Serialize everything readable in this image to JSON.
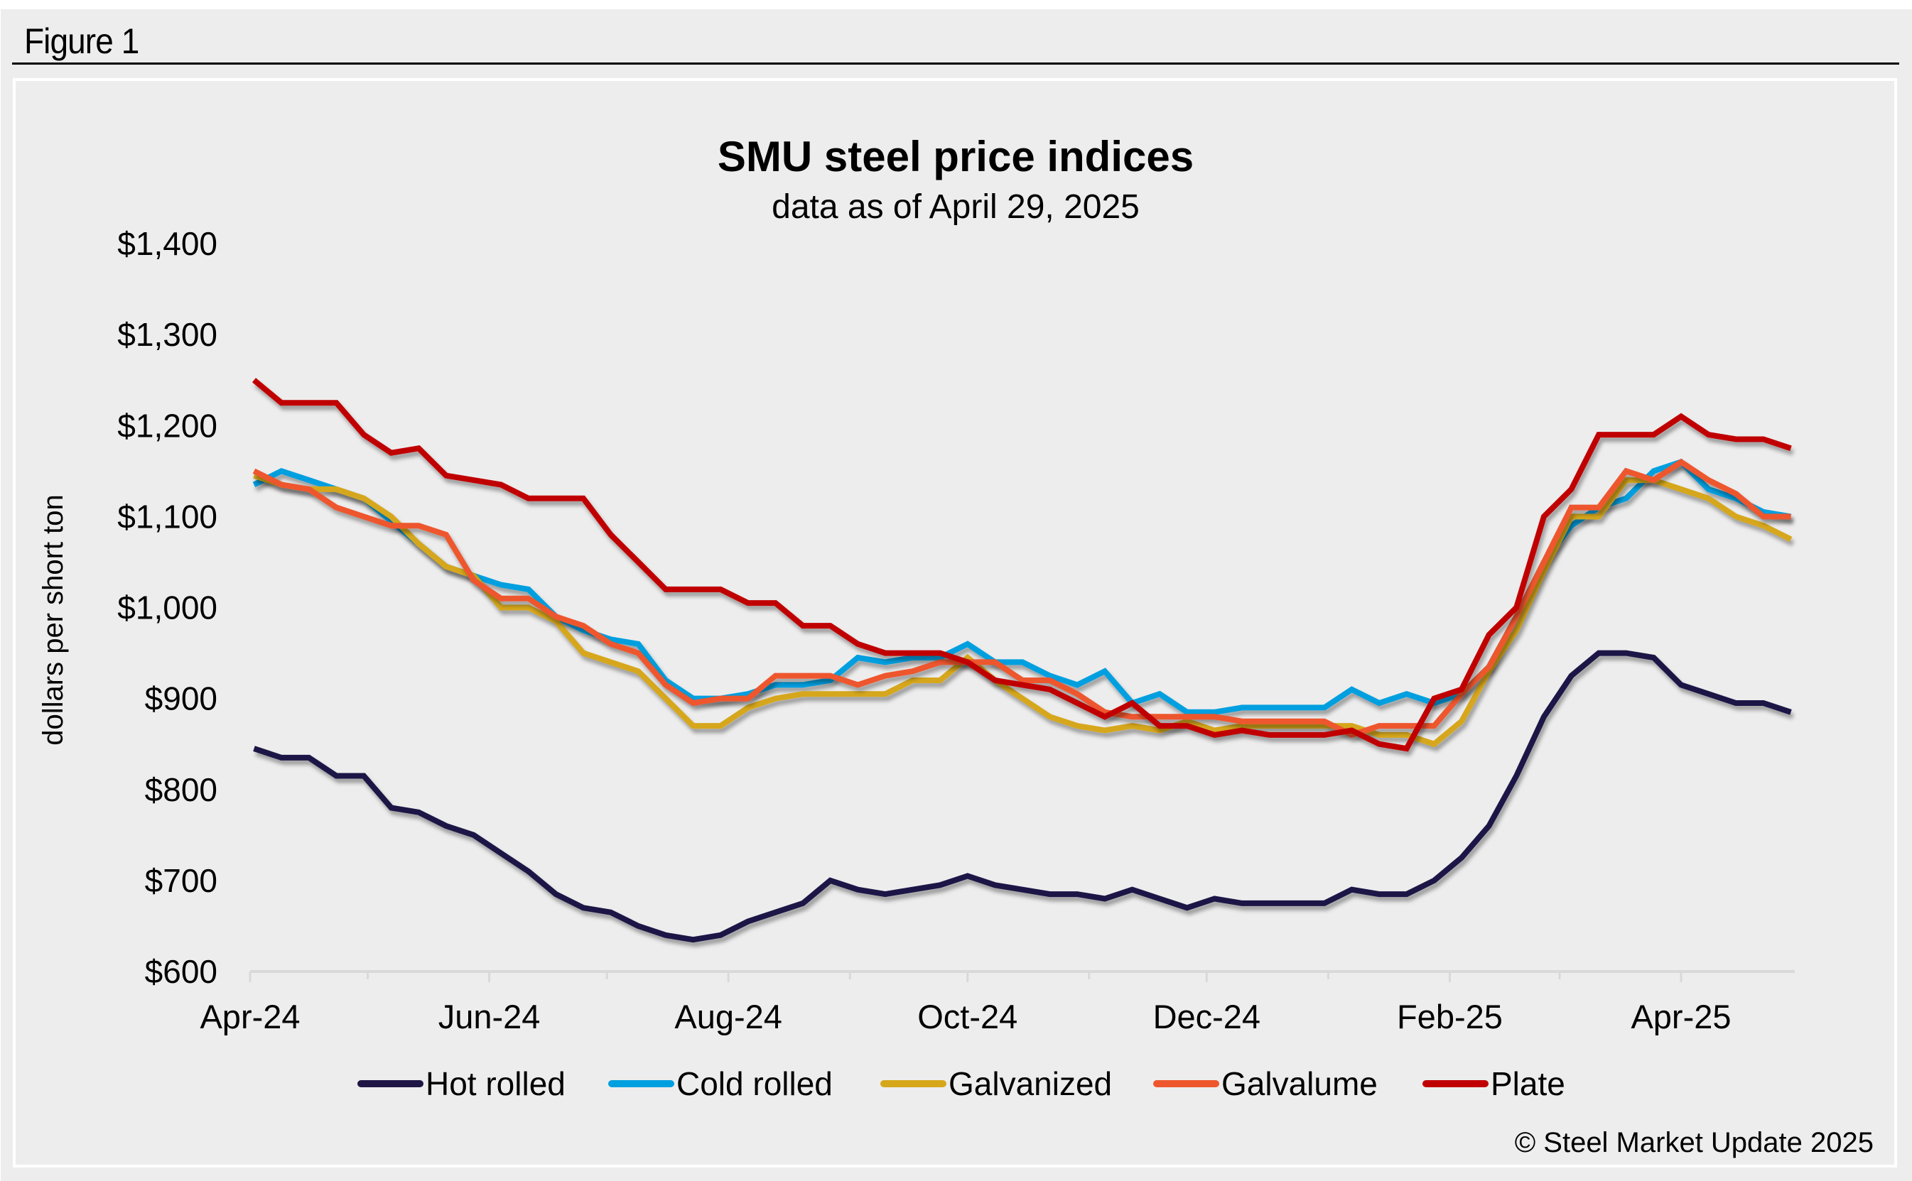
{
  "figure_label": "Figure 1",
  "chart_data": {
    "type": "line",
    "title": "SMU steel price indices",
    "subtitle": "data as of April 29, 2025",
    "xlabel": "",
    "ylabel": "dollars per short ton",
    "ylim": [
      600,
      1400
    ],
    "yticks": [
      600,
      700,
      800,
      900,
      1000,
      1100,
      1200,
      1300,
      1400
    ],
    "ytick_labels": [
      "$600",
      "$700",
      "$800",
      "$900",
      "$1,000",
      "$1,100",
      "$1,200",
      "$1,300",
      "$1,400"
    ],
    "xlim": [
      "2024-04-01",
      "2025-04-30"
    ],
    "x_start": "2024-04-02",
    "x_step_days": 7,
    "x_end": "2025-04-29",
    "xtick_minor": [
      "2024-04-01",
      "2024-05-01",
      "2024-06-01",
      "2024-07-01",
      "2024-08-01",
      "2024-09-01",
      "2024-10-01",
      "2024-11-01",
      "2024-12-01",
      "2025-01-01",
      "2025-02-01",
      "2025-03-01",
      "2025-04-01"
    ],
    "xticks": [
      {
        "date": "2024-04-01",
        "label": "Apr-24"
      },
      {
        "date": "2024-06-01",
        "label": "Jun-24"
      },
      {
        "date": "2024-08-01",
        "label": "Aug-24"
      },
      {
        "date": "2024-10-01",
        "label": "Oct-24"
      },
      {
        "date": "2024-12-01",
        "label": "Dec-24"
      },
      {
        "date": "2025-02-01",
        "label": "Feb-25"
      },
      {
        "date": "2025-04-01",
        "label": "Apr-25"
      }
    ],
    "grid": false,
    "legend_position": "bottom",
    "series": [
      {
        "name": "Hot rolled",
        "color": "#1F1646",
        "values": [
          845,
          835,
          835,
          815,
          815,
          780,
          775,
          760,
          750,
          730,
          710,
          685,
          670,
          665,
          650,
          640,
          635,
          640,
          655,
          665,
          675,
          700,
          690,
          685,
          690,
          695,
          705,
          695,
          690,
          685,
          685,
          680,
          690,
          680,
          670,
          680,
          675,
          675,
          675,
          675,
          690,
          685,
          685,
          700,
          725,
          760,
          815,
          880,
          925,
          950,
          950,
          945,
          915,
          905,
          895,
          895,
          885
        ]
      },
      {
        "name": "Cold rolled",
        "color": "#009FDF",
        "values": [
          1135,
          1150,
          1140,
          1130,
          1120,
          1095,
          1070,
          1045,
          1035,
          1025,
          1020,
          990,
          975,
          965,
          960,
          920,
          900,
          900,
          905,
          915,
          915,
          920,
          945,
          940,
          945,
          945,
          960,
          940,
          940,
          925,
          915,
          930,
          895,
          905,
          885,
          885,
          890,
          890,
          890,
          890,
          910,
          895,
          905,
          895,
          905,
          935,
          990,
          1050,
          1090,
          1110,
          1120,
          1150,
          1160,
          1130,
          1120,
          1105,
          1100
        ]
      },
      {
        "name": "Galvanized",
        "color": "#D6A71B",
        "values": [
          1145,
          1135,
          1130,
          1130,
          1120,
          1100,
          1070,
          1045,
          1035,
          1000,
          1000,
          985,
          950,
          940,
          930,
          900,
          870,
          870,
          890,
          900,
          905,
          905,
          905,
          905,
          920,
          920,
          945,
          920,
          900,
          880,
          870,
          865,
          870,
          865,
          875,
          865,
          870,
          870,
          870,
          870,
          870,
          860,
          860,
          850,
          875,
          930,
          975,
          1040,
          1100,
          1100,
          1140,
          1140,
          1130,
          1120,
          1100,
          1090,
          1075
        ]
      },
      {
        "name": "Galvalume",
        "color": "#EE572D",
        "values": [
          1150,
          1135,
          1130,
          1110,
          1100,
          1090,
          1090,
          1080,
          1030,
          1010,
          1010,
          990,
          980,
          960,
          950,
          915,
          895,
          900,
          900,
          925,
          925,
          925,
          915,
          925,
          930,
          940,
          940,
          940,
          920,
          920,
          905,
          885,
          880,
          880,
          880,
          880,
          875,
          875,
          875,
          875,
          860,
          870,
          870,
          870,
          905,
          935,
          990,
          1050,
          1110,
          1110,
          1150,
          1140,
          1160,
          1140,
          1125,
          1100,
          1100
        ]
      },
      {
        "name": "Plate",
        "color": "#C00000",
        "values": [
          1250,
          1225,
          1225,
          1225,
          1190,
          1170,
          1175,
          1145,
          1140,
          1135,
          1120,
          1120,
          1120,
          1080,
          1050,
          1020,
          1020,
          1020,
          1005,
          1005,
          980,
          980,
          960,
          950,
          950,
          950,
          940,
          920,
          915,
          910,
          895,
          880,
          895,
          870,
          870,
          860,
          865,
          860,
          860,
          860,
          865,
          850,
          845,
          900,
          910,
          970,
          1000,
          1100,
          1130,
          1190,
          1190,
          1190,
          1210,
          1190,
          1185,
          1185,
          1175
        ]
      }
    ],
    "copyright": "© Steel Market Update 2025"
  }
}
